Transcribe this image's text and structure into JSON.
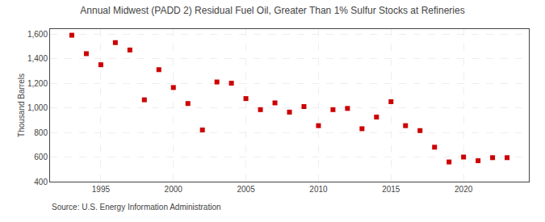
{
  "chart_data": {
    "type": "scatter",
    "title": "Annual Midwest (PADD 2) Residual Fuel Oil, Greater Than 1% Sulfur Stocks at Refineries",
    "ylabel": "Thousand Barrels",
    "annotations": [
      "Source: U.S. Energy Information Administration"
    ],
    "x": [
      1993,
      1994,
      1995,
      1996,
      1997,
      1998,
      1999,
      2000,
      2001,
      2002,
      2003,
      2004,
      2005,
      2006,
      2007,
      2008,
      2009,
      2010,
      2011,
      2012,
      2013,
      2014,
      2015,
      2016,
      2017,
      2018,
      2019,
      2020,
      2021,
      2022,
      2023
    ],
    "values": [
      1590,
      1440,
      1350,
      1530,
      1470,
      1065,
      1310,
      1165,
      1035,
      820,
      1210,
      1200,
      1075,
      985,
      1040,
      965,
      1010,
      855,
      985,
      995,
      830,
      925,
      1050,
      855,
      815,
      680,
      560,
      600,
      570,
      595,
      595
    ],
    "color": "#cc0000",
    "marker": "square",
    "xlim": [
      1991.5,
      2024.5
    ],
    "xticks": [
      1995,
      2000,
      2005,
      2010,
      2015,
      2020
    ],
    "ylim": [
      400,
      1640
    ],
    "yticks": [
      400,
      600,
      800,
      {
        "value": 1000,
        "label": "1,000"
      },
      {
        "value": 1200,
        "label": "1,200"
      },
      {
        "value": 1400,
        "label": "1,400"
      },
      {
        "value": 1600,
        "label": "1,600"
      }
    ],
    "grid": true
  }
}
